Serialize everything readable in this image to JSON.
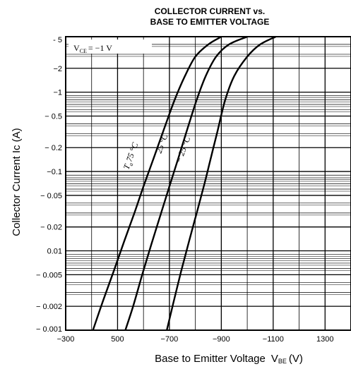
{
  "chart_data": {
    "type": "line",
    "title_line1": "COLLECTOR CURRENT vs.",
    "title_line2": "BASE TO EMITTER VOLTAGE",
    "xlabel": "Base to Emitter Voltage",
    "xlabel_symbol": "V",
    "xlabel_sub": "BE",
    "xlabel_unit": "(V)",
    "ylabel": "Collector Current  Ic (A)",
    "condition_prefix": "V",
    "condition_sub": "CE",
    "condition_value": "= −1  V",
    "x_scale": "linear",
    "y_scale": "log",
    "xlim": [
      -300,
      -1400
    ],
    "ylim": [
      -0.001,
      -5
    ],
    "grid": true,
    "x_ticks": [
      {
        "value": -300,
        "label": "−300"
      },
      {
        "value": -500,
        "label": "500"
      },
      {
        "value": -700,
        "label": "−700"
      },
      {
        "value": -900,
        "label": "−900"
      },
      {
        "value": -1100,
        "label": "−1100"
      },
      {
        "value": -1300,
        "label": "1300"
      }
    ],
    "y_ticks": [
      {
        "value": -5,
        "label": "- 5"
      },
      {
        "value": -2,
        "label": "−2"
      },
      {
        "value": -1,
        "label": "−1"
      },
      {
        "value": -0.5,
        "label": "− 0.5"
      },
      {
        "value": -0.2,
        "label": "− 0.2"
      },
      {
        "value": -0.1,
        "label": "−0.1"
      },
      {
        "value": -0.05,
        "label": "− 0.05"
      },
      {
        "value": -0.02,
        "label": "− 0.02"
      },
      {
        "value": -0.01,
        "label": "0.01"
      },
      {
        "value": -0.005,
        "label": "− 0.005"
      },
      {
        "value": -0.002,
        "label": "− 0.002"
      },
      {
        "value": -0.001,
        "label": "− 0.001"
      }
    ],
    "series": [
      {
        "name": "75 °C",
        "label_prefix": "T",
        "label_sub": "a",
        "x": [
          -405,
          -445,
          -485,
          -525,
          -565,
          -600,
          -640,
          -680,
          -720,
          -760,
          -800,
          -850,
          -900
        ],
        "y": [
          -0.001,
          -0.0024,
          -0.0055,
          -0.013,
          -0.03,
          -0.065,
          -0.15,
          -0.35,
          -0.8,
          -1.6,
          -2.8,
          -4.0,
          -5.0
        ]
      },
      {
        "name": "25 °C",
        "x": [
          -530,
          -560,
          -595,
          -630,
          -665,
          -700,
          -735,
          -770,
          -805,
          -840,
          -880,
          -930,
          -1000
        ],
        "y": [
          -0.001,
          -0.002,
          -0.005,
          -0.012,
          -0.028,
          -0.065,
          -0.15,
          -0.35,
          -0.8,
          -1.6,
          -2.8,
          -4.0,
          -5.0
        ]
      },
      {
        "name": "− 25 °C",
        "x": [
          -690,
          -715,
          -745,
          -775,
          -805,
          -835,
          -860,
          -885,
          -915,
          -950,
          -1000,
          -1050,
          -1110
        ],
        "y": [
          -0.001,
          -0.0022,
          -0.0055,
          -0.013,
          -0.03,
          -0.07,
          -0.15,
          -0.32,
          -0.8,
          -1.6,
          -2.8,
          -4.0,
          -5.0
        ]
      }
    ]
  }
}
